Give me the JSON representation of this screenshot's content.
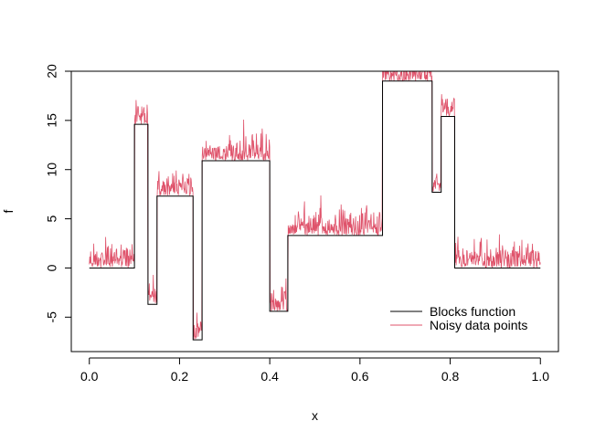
{
  "chart_data": {
    "type": "line",
    "title": "",
    "xlabel": "x",
    "ylabel": "f",
    "xlim": [
      -0.04,
      1.04
    ],
    "ylim": [
      -8.5,
      20.0
    ],
    "x_ticks": [
      0.0,
      0.2,
      0.4,
      0.6,
      0.8,
      1.0
    ],
    "x_tick_labels": [
      "0.0",
      "0.2",
      "0.4",
      "0.6",
      "0.8",
      "1.0"
    ],
    "y_ticks": [
      -5,
      0,
      5,
      10,
      15,
      20
    ],
    "y_tick_labels": [
      "-5",
      "0",
      "5",
      "10",
      "15",
      "20"
    ],
    "legend_position": "bottom-right",
    "series": [
      {
        "name": "Blocks function",
        "color": "#000000",
        "kind": "step",
        "segments": [
          {
            "x0": 0.0,
            "x1": 0.1,
            "y": 0.0
          },
          {
            "x0": 0.1,
            "x1": 0.13,
            "y": 14.6
          },
          {
            "x0": 0.13,
            "x1": 0.15,
            "y": -3.7
          },
          {
            "x0": 0.15,
            "x1": 0.23,
            "y": 7.3
          },
          {
            "x0": 0.23,
            "x1": 0.25,
            "y": -7.3
          },
          {
            "x0": 0.25,
            "x1": 0.4,
            "y": 10.9
          },
          {
            "x0": 0.4,
            "x1": 0.44,
            "y": -4.4
          },
          {
            "x0": 0.44,
            "x1": 0.65,
            "y": 3.3
          },
          {
            "x0": 0.65,
            "x1": 0.76,
            "y": 19.0
          },
          {
            "x0": 0.76,
            "x1": 0.78,
            "y": 7.7
          },
          {
            "x0": 0.78,
            "x1": 0.81,
            "y": 15.4
          },
          {
            "x0": 0.81,
            "x1": 1.0,
            "y": 0.0
          }
        ]
      },
      {
        "name": "Noisy data points",
        "color": "#DF536B",
        "kind": "noisy",
        "noise_sd": 1.0,
        "n_points": 1024
      }
    ]
  }
}
